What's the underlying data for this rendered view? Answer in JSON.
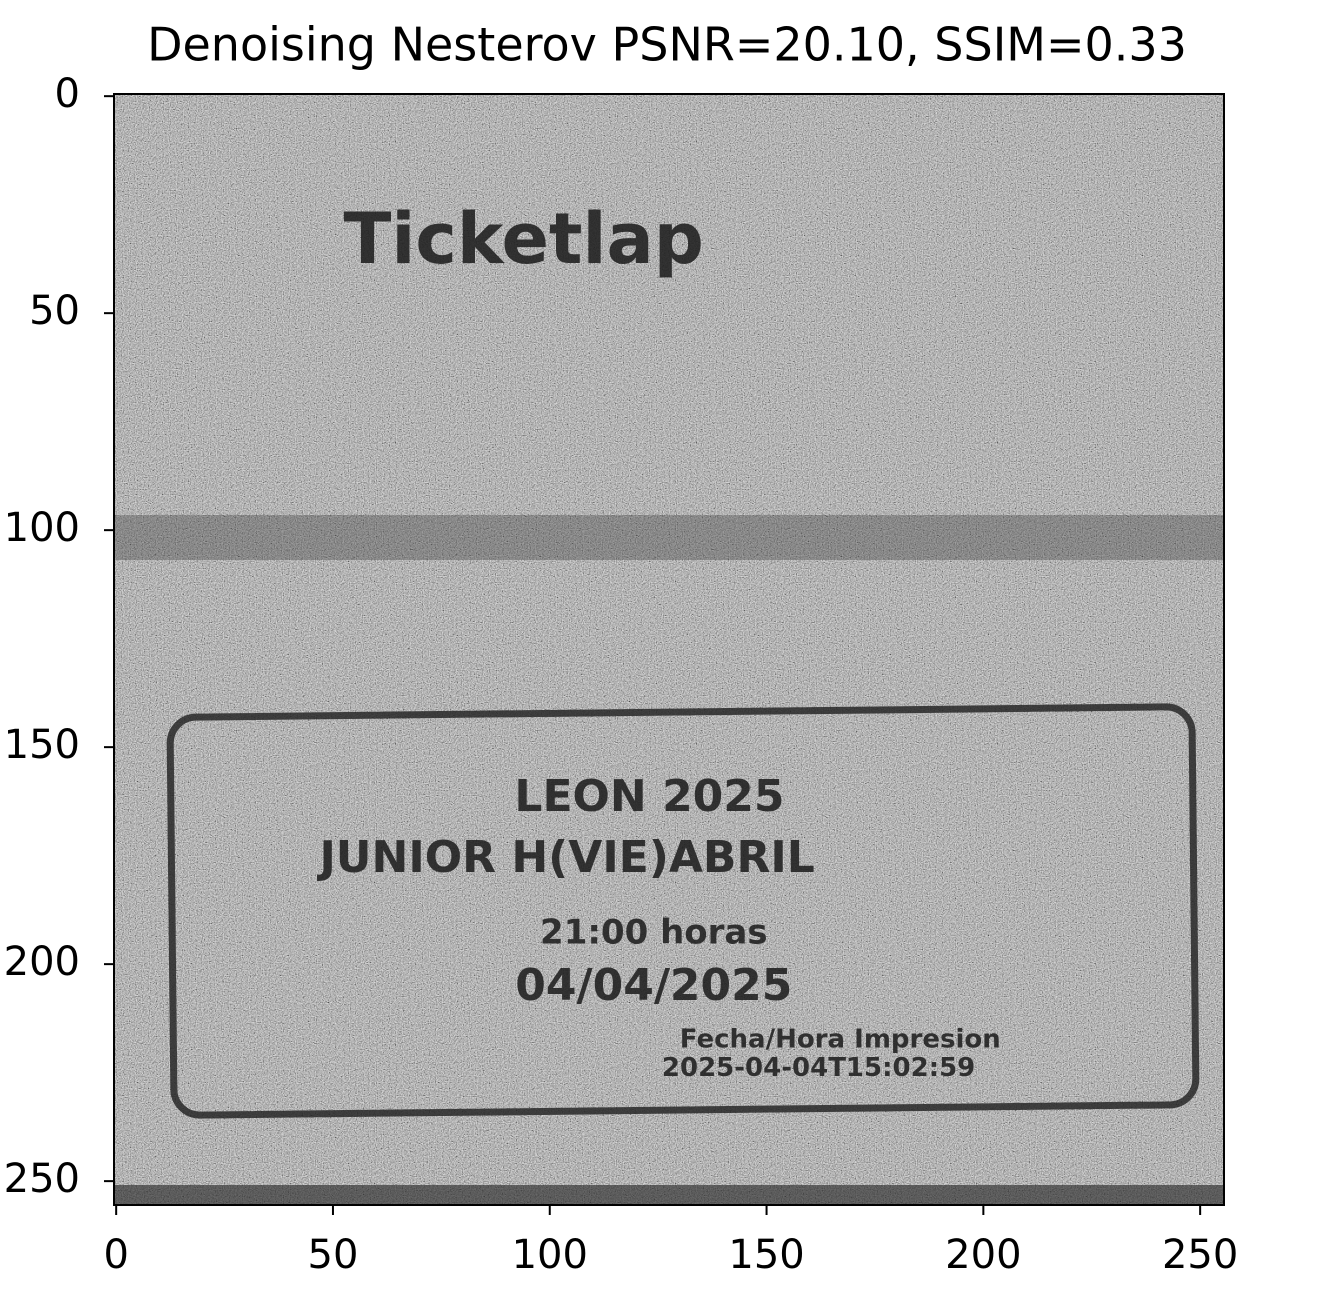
{
  "chart_data": {
    "type": "image",
    "title": "Denoising Nesterov PSNR=20.10, SSIM=0.33",
    "xlim": [
      -0.5,
      255.5
    ],
    "ylim": [
      255.5,
      -0.5
    ],
    "xticks": [
      0,
      50,
      100,
      150,
      200,
      250
    ],
    "yticks": [
      0,
      50,
      100,
      150,
      200,
      250
    ],
    "image_texts": [
      "Ticketlap",
      "LEON 2025",
      "JUNIOR H(VIE)ABRIL",
      "21:00 horas",
      "04/04/2025",
      "Fecha/Hora Impresion",
      "2025-04-04T15:02:59"
    ],
    "colormap": "gray"
  }
}
